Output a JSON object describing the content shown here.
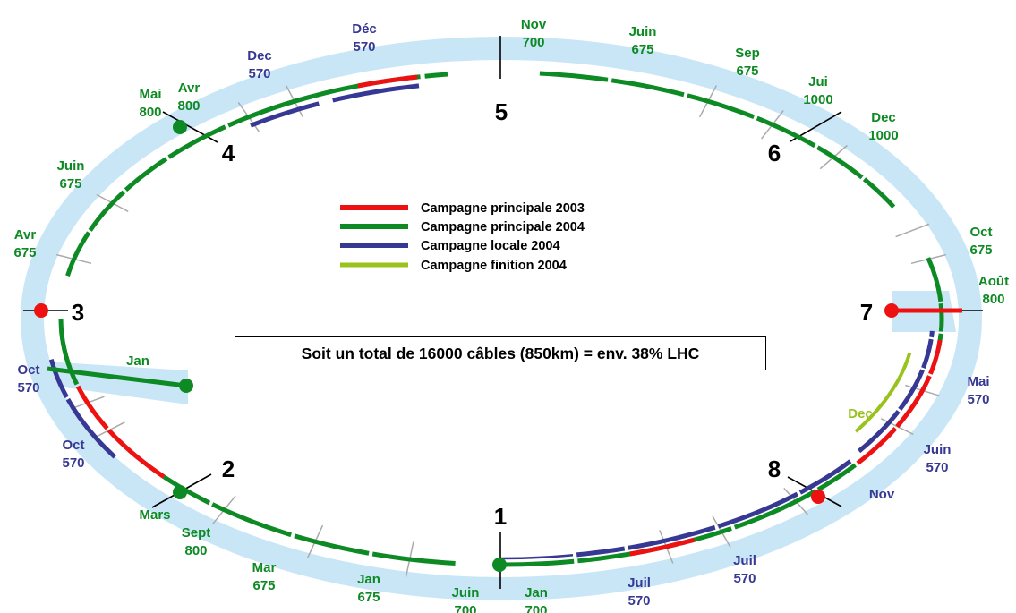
{
  "colors": {
    "ring": "#c9e6f7",
    "campaign_2003": "#ee1111",
    "campaign_2004": "#0d8a23",
    "local_2004": "#363894",
    "finition_2004": "#99c21c",
    "green_text": "#0d8a23",
    "blue_text": "#363894",
    "tick": "#aaaaaa"
  },
  "legend": [
    {
      "label": "Campagne principale 2003",
      "color": "#ee1111"
    },
    {
      "label": "Campagne principale 2004",
      "color": "#0d8a23"
    },
    {
      "label": "Campagne locale 2004",
      "color": "#363894"
    },
    {
      "label": "Campagne finition 2004",
      "color": "#99c21c"
    }
  ],
  "total_text": "Soit un total de 16000 câbles (850km) = env. 38% LHC",
  "points": [
    "1",
    "2",
    "3",
    "4",
    "5",
    "6",
    "7",
    "8"
  ],
  "labels": [
    {
      "l1": "Déc",
      "l2": "570",
      "c1": "blue",
      "c2": "blue"
    },
    {
      "l1": "Nov",
      "l2": "700",
      "c1": "green",
      "c2": "green"
    },
    {
      "l1": "Juin",
      "l2": "675",
      "c1": "green",
      "c2": "green"
    },
    {
      "l1": "Sep",
      "l2": "675",
      "c1": "green",
      "c2": "green"
    },
    {
      "l1": "Jui",
      "l2": "1000",
      "c1": "green",
      "c2": "green"
    },
    {
      "l1": "Dec",
      "l2": "1000",
      "c1": "green",
      "c2": "green"
    },
    {
      "l1": "Dec",
      "l2": "570",
      "c1": "blue",
      "c2": "blue"
    },
    {
      "l1": "Avr",
      "l2": "800",
      "c1": "green",
      "c2": "green"
    },
    {
      "l1": "Mai",
      "l2": "800",
      "c1": "green",
      "c2": "green"
    },
    {
      "l1": "Juin",
      "l2": "675",
      "c1": "green",
      "c2": "green"
    },
    {
      "l1": "Avr",
      "l2": "675",
      "c1": "green",
      "c2": "green"
    },
    {
      "l1": "Oct",
      "l2": "570",
      "c1": "blue",
      "c2": "blue"
    },
    {
      "l1": "Oct",
      "l2": "570",
      "c1": "blue",
      "c2": "blue"
    },
    {
      "l1": "Jan",
      "l2": "",
      "c1": "green",
      "c2": "green"
    },
    {
      "l1": "Mars",
      "l2": "",
      "c1": "green",
      "c2": "green"
    },
    {
      "l1": "Sept",
      "l2": "800",
      "c1": "green",
      "c2": "green"
    },
    {
      "l1": "Mar",
      "l2": "675",
      "c1": "green",
      "c2": "green"
    },
    {
      "l1": "Jan",
      "l2": "675",
      "c1": "green",
      "c2": "green"
    },
    {
      "l1": "Juin",
      "l2": "700",
      "c1": "green",
      "c2": "green"
    },
    {
      "l1": "Jan",
      "l2": "700",
      "c1": "green",
      "c2": "green"
    },
    {
      "l1": "Juil",
      "l2": "570",
      "c1": "blue",
      "c2": "blue"
    },
    {
      "l1": "Juil",
      "l2": "570",
      "c1": "blue",
      "c2": "blue"
    },
    {
      "l1": "Nov",
      "l2": "",
      "c1": "blue",
      "c2": "blue"
    },
    {
      "l1": "Juin",
      "l2": "570",
      "c1": "blue",
      "c2": "blue"
    },
    {
      "l1": "Mai",
      "l2": "570",
      "c1": "blue",
      "c2": "blue"
    },
    {
      "l1": "Dec",
      "l2": "",
      "c1": "finition",
      "c2": "finition"
    },
    {
      "l1": "Oct",
      "l2": "675",
      "c1": "green",
      "c2": "green"
    },
    {
      "l1": "Août",
      "l2": "800",
      "c1": "green",
      "c2": "green"
    }
  ]
}
